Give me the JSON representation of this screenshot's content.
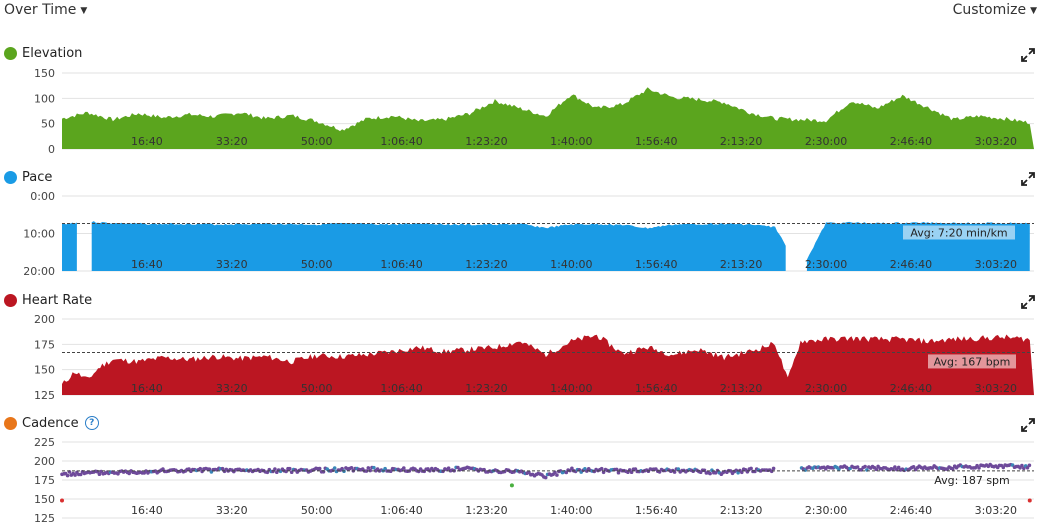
{
  "header": {
    "view_label": "Over Time",
    "customize_label": "Customize"
  },
  "colors": {
    "elevation": "#5ba51e",
    "pace": "#1a9be5",
    "heart_rate": "#bb1622",
    "cadence": "#e8761a",
    "cadence_dot": "#6e4a9a",
    "cadence_alt_dot": "#3a87b8"
  },
  "chart_data": [
    {
      "type": "area",
      "name": "Elevation",
      "ylim": [
        0,
        150
      ],
      "yticks": [
        "150",
        "100",
        "50",
        "0"
      ],
      "xticks": [
        "16:40",
        "33:20",
        "50:00",
        "1:06:40",
        "1:23:20",
        "1:40:00",
        "1:56:40",
        "2:13:20",
        "2:30:00",
        "2:46:40",
        "3:03:20"
      ],
      "x_seconds": [
        0,
        300,
        600,
        900,
        1200,
        1500,
        1800,
        2100,
        2400,
        2700,
        3000,
        3300,
        3600,
        3900,
        4200,
        4500,
        4800,
        5100,
        5400,
        5700,
        6000,
        6300,
        6600,
        6900,
        7200,
        7500,
        7800,
        8100,
        8400,
        8700,
        9000,
        9300,
        9600,
        9900,
        10200,
        10500,
        10800,
        11100,
        11400
      ],
      "values": [
        60,
        72,
        58,
        70,
        62,
        68,
        64,
        72,
        60,
        66,
        55,
        38,
        60,
        65,
        55,
        58,
        70,
        95,
        80,
        65,
        108,
        80,
        88,
        118,
        102,
        98,
        92,
        72,
        60,
        58,
        56,
        95,
        80,
        105,
        82,
        58,
        65,
        60,
        52
      ]
    },
    {
      "type": "area",
      "name": "Pace",
      "ylim": [
        20,
        0
      ],
      "yticks": [
        "0:00",
        "10:00",
        "20:00"
      ],
      "inverted": true,
      "avg_label": "Avg: 7:20 min/km",
      "avg_value": 7.33,
      "xticks": [
        "16:40",
        "33:20",
        "50:00",
        "1:06:40",
        "1:23:20",
        "1:40:00",
        "1:56:40",
        "2:13:20",
        "2:30:00",
        "2:46:40",
        "3:03:20"
      ],
      "x_seconds": [
        0,
        300,
        600,
        900,
        1200,
        1500,
        1800,
        2100,
        2400,
        2700,
        3000,
        3300,
        3600,
        3900,
        4200,
        4500,
        4800,
        5100,
        5400,
        5700,
        6000,
        6300,
        6600,
        6900,
        7200,
        7500,
        7800,
        8100,
        8400,
        8700,
        9000,
        9300,
        9600,
        9900,
        10200,
        10500,
        10800,
        11100,
        11400
      ],
      "values": [
        7.5,
        6.8,
        7.3,
        7.4,
        7.5,
        7.4,
        7.6,
        7.5,
        7.4,
        7.5,
        7.6,
        7.4,
        7.5,
        7.6,
        7.3,
        7.5,
        7.7,
        7.6,
        7.5,
        8.5,
        7.6,
        7.5,
        7.7,
        8.6,
        7.6,
        7.5,
        7.4,
        7.6,
        8.3,
        20,
        7.2,
        7.1,
        7.3,
        7.2,
        7.1,
        7.2,
        7.3,
        7.2,
        7.3
      ],
      "gaps": [
        [
          180,
          330
        ],
        [
          8550,
          8750
        ]
      ]
    },
    {
      "type": "area",
      "name": "Heart Rate",
      "ylim": [
        125,
        200
      ],
      "yticks": [
        "200",
        "175",
        "150",
        "125"
      ],
      "avg_label": "Avg: 167 bpm",
      "avg_value": 167,
      "xticks": [
        "16:40",
        "33:20",
        "50:00",
        "1:06:40",
        "1:23:20",
        "1:40:00",
        "1:56:40",
        "2:13:20",
        "2:30:00",
        "2:46:40",
        "3:03:20"
      ],
      "x_seconds": [
        0,
        150,
        300,
        450,
        600,
        900,
        1200,
        1500,
        1800,
        2100,
        2400,
        2700,
        3000,
        3300,
        3600,
        3900,
        4200,
        4500,
        4800,
        5100,
        5400,
        5700,
        6000,
        6300,
        6600,
        6900,
        7200,
        7500,
        7800,
        8100,
        8400,
        8550,
        8700,
        9000,
        9300,
        9600,
        9900,
        10200,
        10500,
        10800,
        11100,
        11400
      ],
      "values": [
        135,
        148,
        140,
        153,
        160,
        158,
        162,
        160,
        163,
        161,
        163,
        158,
        164,
        163,
        165,
        168,
        172,
        168,
        170,
        172,
        178,
        165,
        178,
        184,
        166,
        172,
        165,
        170,
        162,
        168,
        176,
        140,
        178,
        180,
        181,
        180,
        180,
        178,
        180,
        181,
        182,
        180
      ]
    },
    {
      "type": "scatter",
      "name": "Cadence",
      "ylim": [
        125,
        225
      ],
      "yticks": [
        "225",
        "200",
        "175",
        "150",
        "125"
      ],
      "avg_label": "Avg: 187 spm",
      "avg_value": 187,
      "xticks": [
        "16:40",
        "33:20",
        "50:00",
        "1:06:40",
        "1:23:20",
        "1:40:00",
        "1:56:40",
        "2:13:20",
        "2:30:00",
        "2:46:40",
        "3:03:20"
      ],
      "x_seconds": [
        0,
        600,
        1200,
        1800,
        2400,
        3000,
        3600,
        4200,
        4800,
        5100,
        5400,
        5700,
        6000,
        6600,
        7200,
        7800,
        8100,
        8700,
        9300,
        9900,
        10500,
        11100,
        11400
      ],
      "values": [
        183,
        185,
        187,
        188,
        187,
        188,
        189,
        188,
        190,
        187,
        186,
        180,
        188,
        187,
        188,
        185,
        188,
        190,
        191,
        190,
        192,
        194,
        192
      ],
      "outliers": [
        [
          0,
          148
        ],
        [
          5300,
          168
        ],
        [
          11400,
          148
        ]
      ]
    }
  ]
}
